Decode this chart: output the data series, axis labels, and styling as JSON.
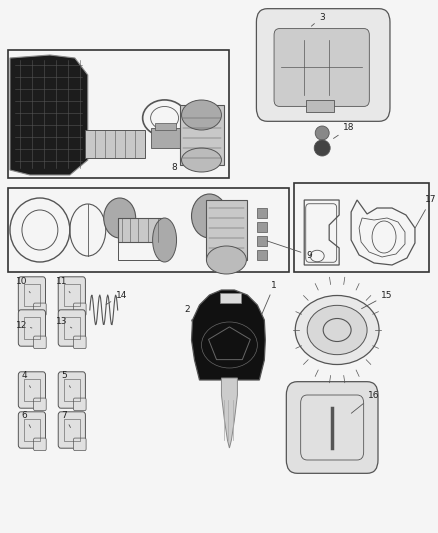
{
  "bg_color": "#f5f5f5",
  "fig_width": 4.38,
  "fig_height": 5.33,
  "dpi": 100,
  "line_color": "#555555",
  "box_color": "#333333",
  "text_color": "#222222",
  "font_size": 6.5
}
